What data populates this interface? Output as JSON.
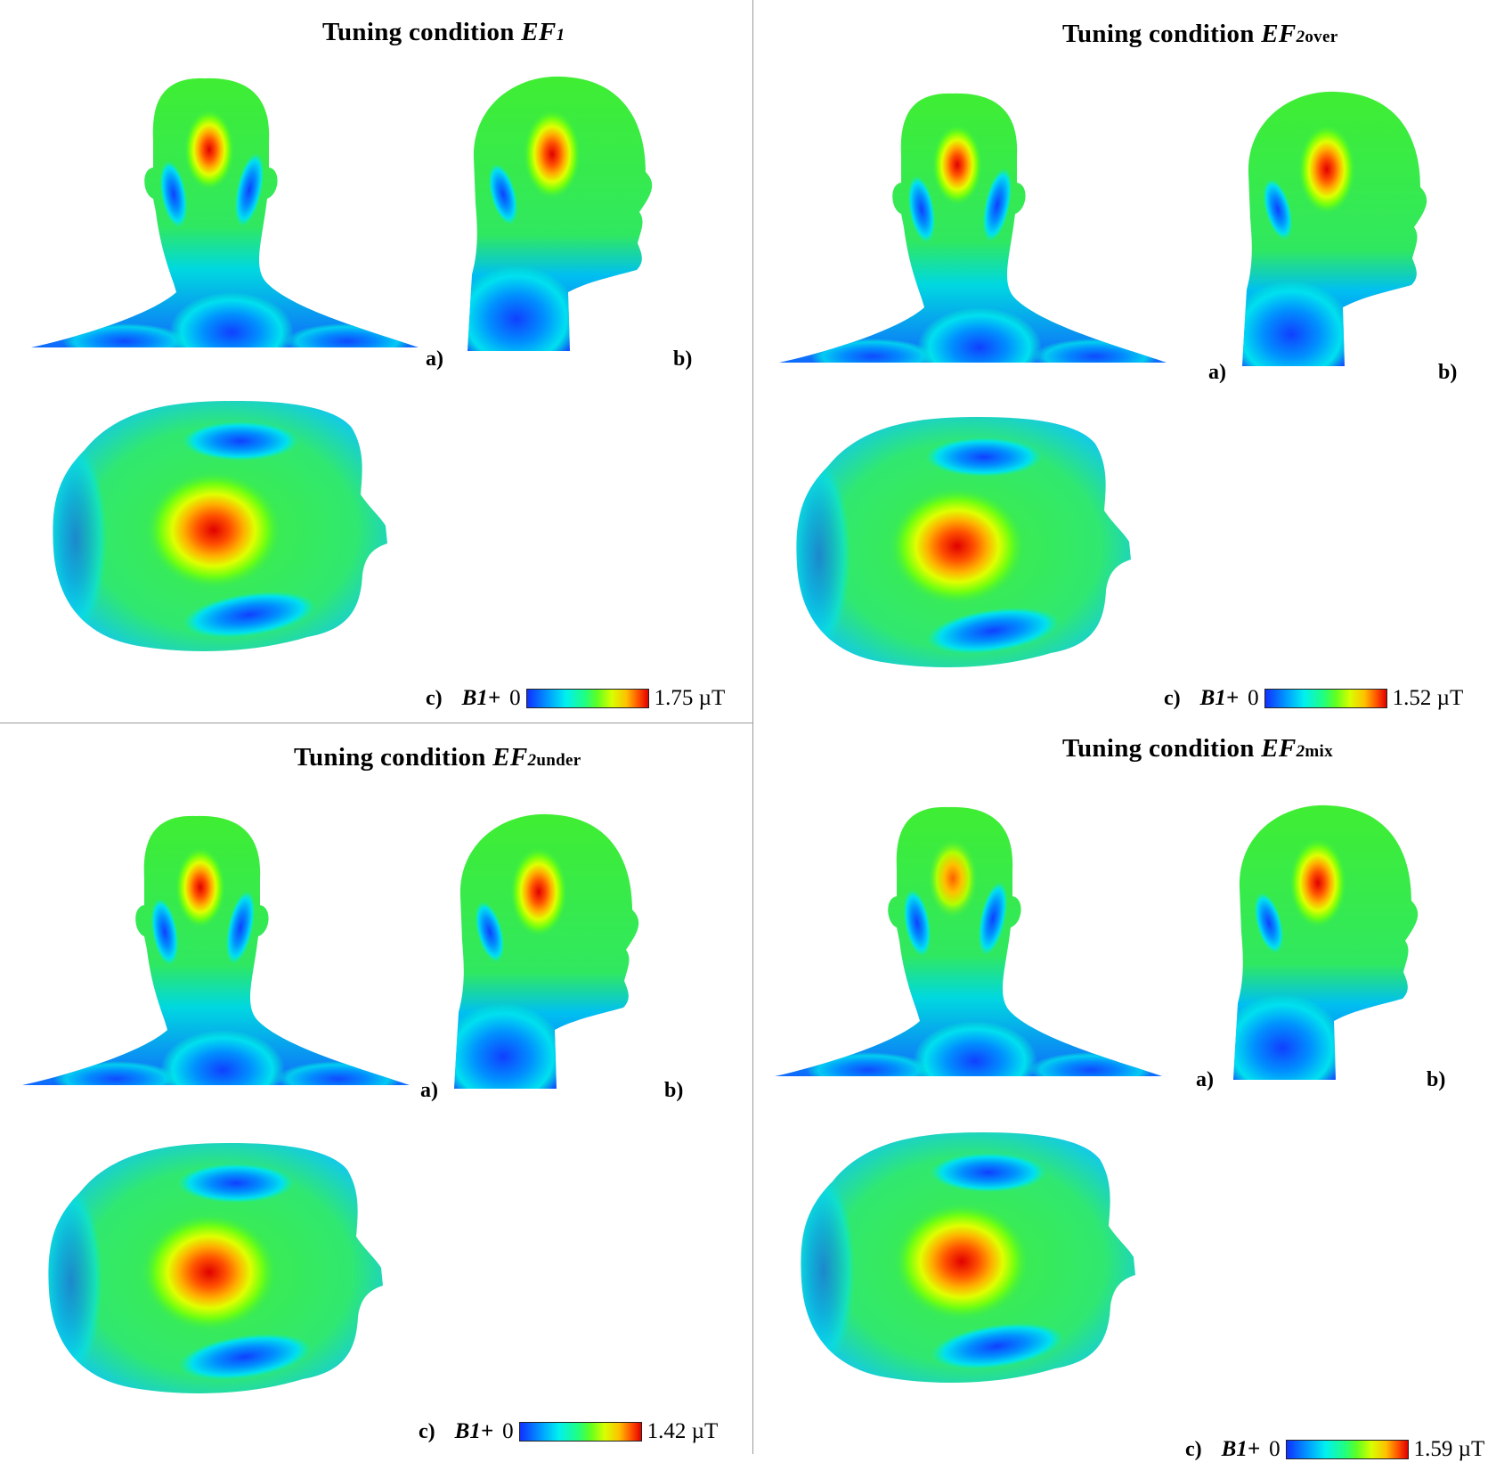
{
  "panels": [
    {
      "title": "Tuning condition",
      "ef": "EF",
      "ef_sub": "1",
      "sub_suffix": "",
      "labels": {
        "a": "a)",
        "b": "b)",
        "c": "c)"
      },
      "colorbar": {
        "quantity": "B1+",
        "min": "0",
        "max": "1.75 µT"
      }
    },
    {
      "title": "Tuning condition",
      "ef": "EF",
      "ef_sub": "2",
      "sub_suffix": "over",
      "labels": {
        "a": "a)",
        "b": "b)",
        "c": "c)"
      },
      "colorbar": {
        "quantity": "B1+",
        "min": "0",
        "max": "1.52 µT"
      }
    },
    {
      "title": "Tuning condition",
      "ef": "EF",
      "ef_sub": "2",
      "sub_suffix": "under",
      "labels": {
        "a": "a)",
        "b": "b)",
        "c": "c)"
      },
      "colorbar": {
        "quantity": "B1+",
        "min": "0",
        "max": "1.42 µT"
      }
    },
    {
      "title": "Tuning condition",
      "ef": "EF",
      "ef_sub": "2",
      "sub_suffix": "mix",
      "labels": {
        "a": "a)",
        "b": "b)",
        "c": "c)"
      },
      "colorbar": {
        "quantity": "B1+",
        "min": "0",
        "max": "1.59 µT"
      }
    }
  ],
  "colorscale": [
    "#1030ff",
    "#00a0ff",
    "#00f0f0",
    "#20ff80",
    "#60ff20",
    "#d8ff00",
    "#ffc000",
    "#ff5000",
    "#e00000"
  ]
}
